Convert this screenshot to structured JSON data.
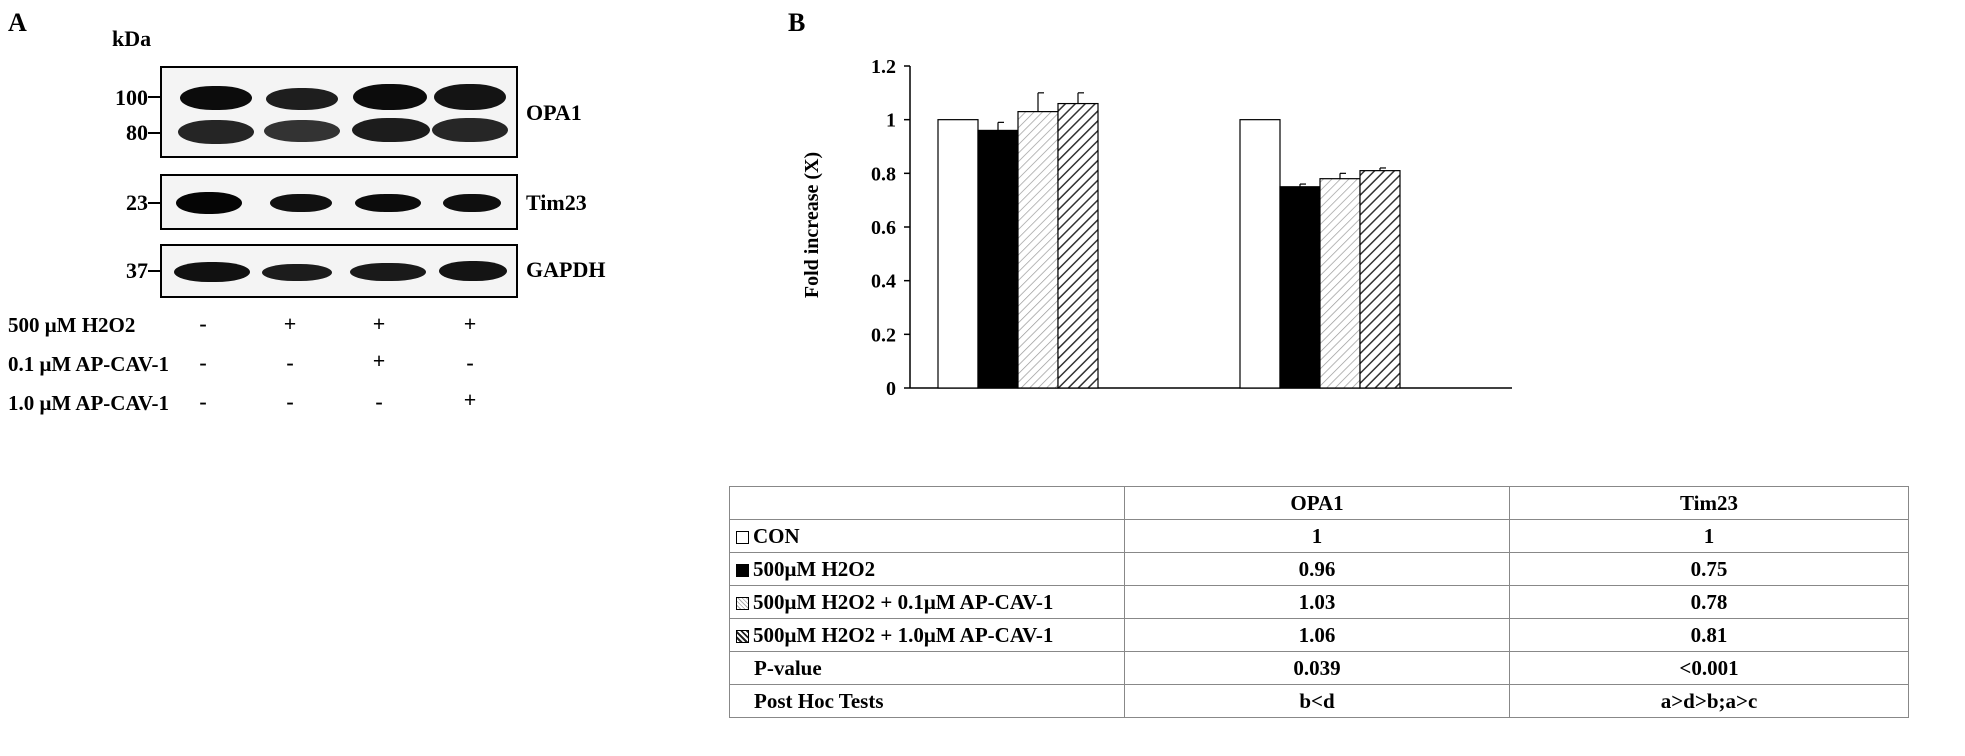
{
  "panel_a": {
    "label": "A",
    "kda_label": "kDa",
    "blots": [
      {
        "name": "OPA1",
        "markers": [
          "100",
          "80"
        ]
      },
      {
        "name": "Tim23",
        "markers": [
          "23"
        ]
      },
      {
        "name": "GAPDH",
        "markers": [
          "37"
        ]
      }
    ],
    "treatments": [
      {
        "label": "500 μM H2O2",
        "signs": [
          "-",
          "+",
          "+",
          "+"
        ]
      },
      {
        "label": "0.1 μM AP-CAV-1",
        "signs": [
          "-",
          "-",
          "+",
          "-"
        ]
      },
      {
        "label": "1.0 μM AP-CAV-1",
        "signs": [
          "-",
          "-",
          "-",
          "+"
        ]
      }
    ]
  },
  "panel_b": {
    "label": "B"
  },
  "chart_data": {
    "type": "bar",
    "ylabel": "Fold increase (X)",
    "xlabel": "",
    "ylim": [
      0,
      1.2
    ],
    "yticks": [
      "0",
      "0.2",
      "0.4",
      "0.6",
      "0.8",
      "1",
      "1.2"
    ],
    "categories": [
      "OPA1",
      "Tim23"
    ],
    "series": [
      {
        "name": "CON",
        "values": [
          1,
          1
        ],
        "errors": [
          0,
          0
        ],
        "fill": "white"
      },
      {
        "name": "500μM H2O2",
        "values": [
          0.96,
          0.75
        ],
        "errors": [
          0.03,
          0.01
        ],
        "fill": "black"
      },
      {
        "name": "500μM H2O2 + 0.1μM AP-CAV-1",
        "values": [
          1.03,
          0.78
        ],
        "errors": [
          0.07,
          0.02
        ],
        "fill": "light-hatch"
      },
      {
        "name": "500μM H2O2 + 1.0μM AP-CAV-1",
        "values": [
          1.06,
          0.81
        ],
        "errors": [
          0.04,
          0.01
        ],
        "fill": "dark-hatch"
      }
    ],
    "table_rows": [
      {
        "label": "CON",
        "legend": "white",
        "values": [
          "1",
          "1"
        ]
      },
      {
        "label": "500μM H2O2",
        "legend": "black",
        "values": [
          "0.96",
          "0.75"
        ]
      },
      {
        "label": "500μM H2O2 + 0.1μM AP-CAV-1",
        "legend": "light-hatch",
        "values": [
          "1.03",
          "0.78"
        ]
      },
      {
        "label": "500μM H2O2 + 1.0μM AP-CAV-1",
        "legend": "dark-hatch",
        "values": [
          "1.06",
          "0.81"
        ]
      },
      {
        "label": "P-value",
        "legend": "",
        "values": [
          "0.039",
          "<0.001"
        ]
      },
      {
        "label": "Post Hoc Tests",
        "legend": "",
        "values": [
          "b<d",
          "a>d>b;a>c"
        ]
      }
    ],
    "grid": false,
    "legend_placement": "table-below"
  }
}
